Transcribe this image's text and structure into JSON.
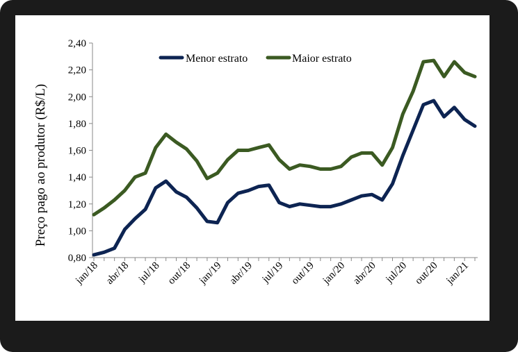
{
  "chart_data": {
    "type": "line",
    "title": "",
    "xlabel": "",
    "ylabel": "Preço pago ao produtor (R$/L)",
    "ylim": [
      0.8,
      2.4
    ],
    "y_ticks": [
      "0,80",
      "1,00",
      "1,20",
      "1,40",
      "1,60",
      "1,80",
      "2,00",
      "2,20",
      "2,40"
    ],
    "x_tick_labels": [
      "jan/18",
      "abr/18",
      "jul/18",
      "out/18",
      "jan/19",
      "abr/19",
      "jul/19",
      "out/19",
      "jan/20",
      "abr/20",
      "jul/20",
      "out/20",
      "jan/21"
    ],
    "x": [
      "jan/18",
      "fev/18",
      "mar/18",
      "abr/18",
      "mai/18",
      "jun/18",
      "jul/18",
      "ago/18",
      "set/18",
      "out/18",
      "nov/18",
      "dez/18",
      "jan/19",
      "fev/19",
      "mar/19",
      "abr/19",
      "mai/19",
      "jun/19",
      "jul/19",
      "ago/19",
      "set/19",
      "out/19",
      "nov/19",
      "dez/19",
      "jan/20",
      "fev/20",
      "mar/20",
      "abr/20",
      "mai/20",
      "jun/20",
      "jul/20",
      "ago/20",
      "set/20",
      "out/20",
      "nov/20",
      "dez/20",
      "jan/21",
      "fev/21"
    ],
    "legend_position": "top",
    "grid": false,
    "series": [
      {
        "name": "Menor estrato",
        "color": "#0d2452",
        "values": [
          0.82,
          0.84,
          0.87,
          1.01,
          1.09,
          1.16,
          1.32,
          1.37,
          1.29,
          1.25,
          1.17,
          1.07,
          1.06,
          1.21,
          1.28,
          1.3,
          1.33,
          1.34,
          1.21,
          1.18,
          1.2,
          1.19,
          1.18,
          1.18,
          1.2,
          1.23,
          1.26,
          1.27,
          1.23,
          1.35,
          1.56,
          1.75,
          1.94,
          1.97,
          1.85,
          1.92,
          1.83,
          1.78
        ]
      },
      {
        "name": "Maior estrato",
        "color": "#3b5a22",
        "values": [
          1.12,
          1.17,
          1.23,
          1.3,
          1.4,
          1.43,
          1.62,
          1.72,
          1.66,
          1.61,
          1.52,
          1.39,
          1.43,
          1.53,
          1.6,
          1.6,
          1.62,
          1.64,
          1.53,
          1.46,
          1.49,
          1.48,
          1.46,
          1.46,
          1.48,
          1.55,
          1.58,
          1.58,
          1.49,
          1.62,
          1.87,
          2.04,
          2.26,
          2.27,
          2.15,
          2.26,
          2.18,
          2.15
        ]
      }
    ]
  }
}
